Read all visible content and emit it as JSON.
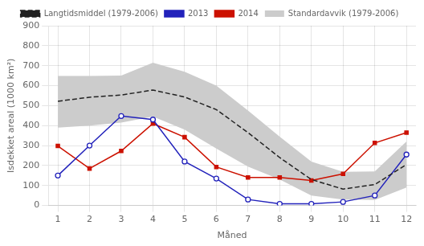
{
  "chart_data": {
    "type": "line",
    "x_label": "Måned",
    "y_label": "Isdekket areal (1000 km²)",
    "x": [
      1,
      2,
      3,
      4,
      5,
      6,
      7,
      8,
      9,
      10,
      11,
      12
    ],
    "xlim": [
      0.7,
      12.3
    ],
    "xticks": [
      1,
      2,
      3,
      4,
      5,
      6,
      7,
      8,
      9,
      10,
      11,
      12
    ],
    "ylim": [
      0,
      900
    ],
    "yticks": [
      0,
      100,
      200,
      300,
      400,
      500,
      600,
      700,
      800,
      900
    ],
    "legend": "top",
    "series": [
      {
        "name": "Langtidsmiddel (1979-2006)",
        "type": "line",
        "color": "#222222",
        "line_style": "dashed",
        "values": [
          522,
          542,
          553,
          578,
          543,
          480,
          365,
          240,
          130,
          82,
          105,
          205
        ]
      },
      {
        "name": "Standardavvik (1979-2006)",
        "type": "area",
        "color": "#cccccc",
        "lower": [
          390,
          400,
          415,
          445,
          380,
          285,
          195,
          130,
          50,
          30,
          28,
          90
        ],
        "upper": [
          648,
          648,
          650,
          715,
          670,
          600,
          475,
          345,
          220,
          168,
          170,
          320
        ]
      },
      {
        "name": "2013",
        "type": "line",
        "color": "#2222bb",
        "line_style": "solid",
        "marker": "open_circle",
        "values": [
          150,
          300,
          448,
          430,
          220,
          135,
          30,
          8,
          8,
          18,
          50,
          255
        ]
      },
      {
        "name": "2014",
        "type": "line",
        "color": "#cc1100",
        "line_style": "solid",
        "marker": "square",
        "values": [
          298,
          185,
          273,
          410,
          342,
          193,
          140,
          140,
          125,
          158,
          313,
          365
        ]
      }
    ]
  }
}
